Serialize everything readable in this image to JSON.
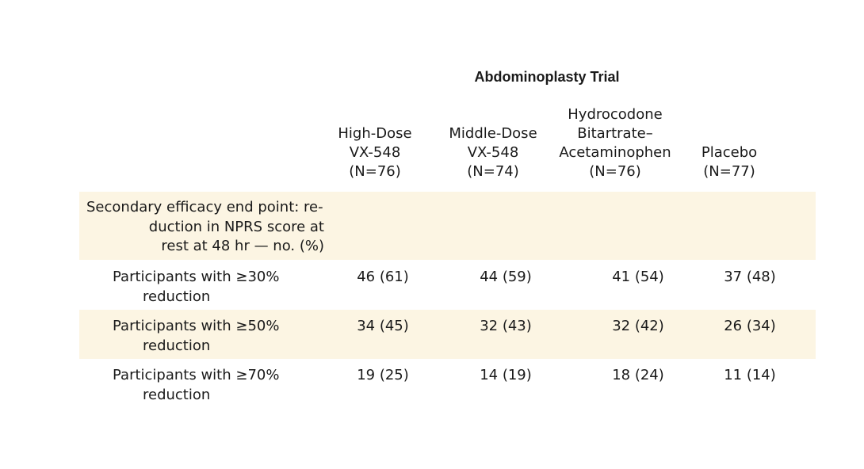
{
  "table": {
    "trial_title": "Abdominoplasty Trial",
    "columns": [
      {
        "lines": [
          "High-Dose",
          "VX-548",
          "(N=76)"
        ]
      },
      {
        "lines": [
          "Middle-Dose",
          "VX-548",
          "(N=74)"
        ]
      },
      {
        "lines": [
          "Hydrocodone",
          "Bitartrate–",
          "Acetaminophen",
          "(N=76)"
        ]
      },
      {
        "lines": [
          "Placebo",
          "(N=77)"
        ]
      }
    ],
    "section_label": [
      "Secondary efficacy end point: re-",
      "duction in NPRS score at",
      "rest at 48 hr — no. (%)"
    ],
    "rows": [
      {
        "label": [
          "Participants with ≥30%",
          "reduction"
        ],
        "values": [
          "46 (61)",
          "44 (59)",
          "41 (54)",
          "37 (48)"
        ]
      },
      {
        "label": [
          "Participants with ≥50%",
          "reduction"
        ],
        "values": [
          "34 (45)",
          "32 (43)",
          "32 (42)",
          "26 (34)"
        ]
      },
      {
        "label": [
          "Participants with ≥70%",
          "reduction"
        ],
        "values": [
          "19 (25)",
          "14 (19)",
          "18 (24)",
          "11 (14)"
        ]
      }
    ]
  }
}
